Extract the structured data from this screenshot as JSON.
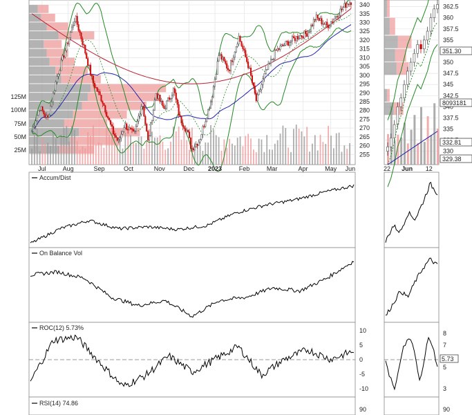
{
  "chart_data": [
    {
      "type": "line",
      "panel": "main price chart with volume-by-price and volume",
      "x_labels": [
        "Jul",
        "Aug",
        "Sep",
        "Oct",
        "Nov",
        "Dec",
        "2023",
        "Feb",
        "Mar",
        "Apr",
        "May",
        "Jun"
      ],
      "price_ticks": [
        255,
        260,
        265,
        270,
        275,
        280,
        285,
        290,
        295,
        300,
        305,
        310,
        315,
        320,
        325,
        330,
        335,
        340
      ],
      "volume_ticks": [
        "25M",
        "50M",
        "75M",
        "100M",
        "125M"
      ],
      "grid": true
    },
    {
      "type": "line",
      "panel": "daily zoom candlesticks",
      "x_labels": [
        "22",
        "Jun",
        "12"
      ],
      "price_ticks": [
        330,
        332.5,
        335,
        337.5,
        340,
        342.5,
        345,
        347.5,
        350,
        352.5,
        355,
        357.5,
        360,
        362.5
      ],
      "badges": [
        "351.30",
        "332.81",
        "329.38",
        "8093181"
      ]
    },
    {
      "type": "line",
      "title": "Accum/Dist",
      "legend": "Accum/Dist"
    },
    {
      "type": "line",
      "title": "On Balance Vol",
      "legend": "On Balance Vol"
    },
    {
      "type": "line",
      "title": "ROC(12) 5.73%",
      "legend": "ROC(12) 5.73%",
      "yticks": [
        10,
        5,
        0,
        -5,
        -10
      ],
      "zoom_yticks": [
        8,
        7,
        6,
        5,
        3
      ],
      "badge": "5.73"
    },
    {
      "type": "line",
      "title": "RSI(14) 74.86",
      "legend": "RSI(14) 74.86",
      "yticks": [
        90
      ],
      "zoom_yticks": [
        90
      ]
    }
  ],
  "colors": {
    "up": "#4a4a4a",
    "down": "#cc1111",
    "bollinger": "#228822",
    "ma50": "#2222aa",
    "ma200": "#bb2233",
    "vbp_up": "#999999",
    "vbp_down": "#ee9999"
  }
}
